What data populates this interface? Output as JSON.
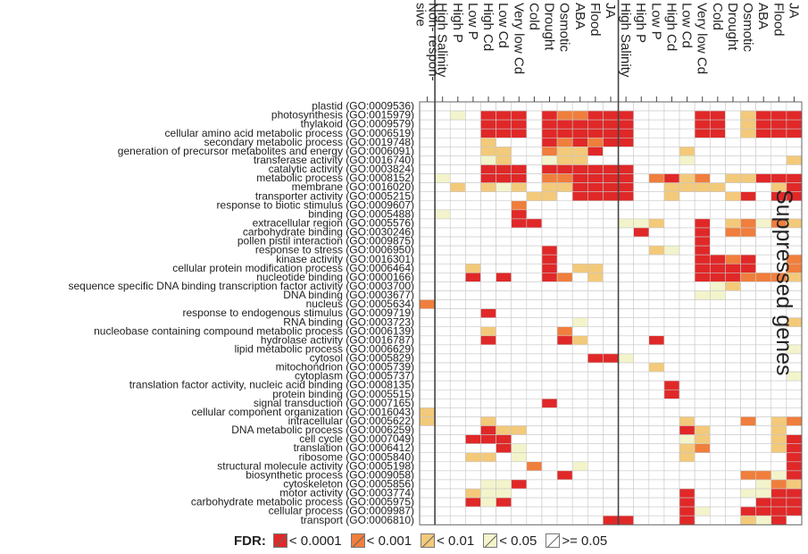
{
  "chart_data": {
    "type": "heatmap",
    "side_title": "Suppressed genes",
    "columns": [
      "Non- respon- sive",
      "High Salinity",
      "High P",
      "Low P",
      "High Cd",
      "Low Cd",
      "Very low Cd",
      "Cold",
      "Drought",
      "Osmotic",
      "ABA",
      "Flood",
      "JA",
      "High Salinity",
      "High P",
      "Low P",
      "High Cd",
      "Low Cd",
      "Very low Cd",
      "Cold",
      "Drought",
      "Osmotic",
      "ABA",
      "Flood",
      "JA"
    ],
    "rows": [
      "plastid (GO:0009536)",
      "photosynthesis (GO:0015979)",
      "thylakoid (GO:0009579)",
      "cellular amino acid metabolic process (GO:0006519)",
      "secondary metabolic process (GO:0019748)",
      "generation of precursor metabolites and energy (GO:0006091)",
      "transferase activity (GO:0016740)",
      "catalytic activity (GO:0003824)",
      "metabolic process (GO:0008152)",
      "membrane (GO:0016020)",
      "transporter activity (GO:0005215)",
      "response to biotic stimulus (GO:0009607)",
      "binding (GO:0005488)",
      "extracellular region (GO:0005576)",
      "carbohydrate binding (GO:0030246)",
      "pollen pistil interaction (GO:0009875)",
      "response to stress (GO:0006950)",
      "kinase activity (GO:0016301)",
      "cellular protein modification process (GO:0006464)",
      "nucleotide binding (GO:0000166)",
      "sequence specific DNA binding transcription factor activity (GO:0003700)",
      "DNA binding (GO:0003677)",
      "nucleus (GO:0005634)",
      "response to endogenous stimulus (GO:0009719)",
      "RNA binding (GO:0003723)",
      "nucleobase containing compound metabolic process (GO:0006139)",
      "hydrolase activity (GO:0016787)",
      "lipid metabolic process (GO:0006629)",
      "cytosol (GO:0005829)",
      "mitochondrion (GO:0005739)",
      "cytoplasm (GO:0005737)",
      "translation factor activity, nucleic acid binding (GO:0008135)",
      "protein binding (GO:0005515)",
      "signal transduction (GO:0007165)",
      "cellular component organization (GO:0016043)",
      "intracellular (GO:0005622)",
      "DNA metabolic process (GO:0006259)",
      "cell cycle (GO:0007049)",
      "translation (GO:0006412)",
      "ribosome (GO:0005840)",
      "structural molecule activity (GO:0005198)",
      "biosynthetic process (GO:0009058)",
      "cytoskeleton (GO:0005856)",
      "motor activity (GO:0003774)",
      "carbohydrate metabolic process (GO:0005975)",
      "cellular process (GO:0009987)",
      "transport (GO:0006810)"
    ],
    "legend_title": "FDR:",
    "levels": [
      {
        "label": "< 0.0001",
        "color": "#e02828"
      },
      {
        "label": "< 0.001",
        "color": "#f07e3c"
      },
      {
        "label": "< 0.01",
        "color": "#f3c97a"
      },
      {
        "label": "< 0.05",
        "color": "#f3f4cb"
      },
      {
        "label": ">= 0.05",
        "color": "#ffffff"
      }
    ],
    "cells": [
      "0000000000000000000000000",
      "0040111012211100001103111",
      "0000111011111100001103111",
      "0000111011111100001103111",
      "0000300012121100000000000",
      "0000330023310000030000000",
      "0000430043300000040000003",
      "0000111011111100000000000",
      "0400111022111102132033111",
      "0030343033111100333300031",
      "0000000330111100300031011",
      "0000002000000000000000000",
      "0400001000000000000000000",
      "0000001100000443001032423",
      "0000000000000010001022000",
      "0000000000000000001000000",
      "0000000010000003401000000",
      "0000000010000000001121002",
      "0003000010330000001111002",
      "0001010012030000001112223",
      "0000000000000000000430000",
      "0000000000000000004400000",
      "2000000000000000000000000",
      "0000100000000000000000000",
      "0000000000400000000000003",
      "0000300002000000000000000",
      "0000100001300001000000000",
      "0000000000000000000000004",
      "0000000000011400000000000",
      "0000000000000003000000000",
      "0000000000000000000000004",
      "0000000000000000100000000",
      "0000000000000000100000000",
      "0000000010000000000000000",
      "3000000000000000000000000",
      "3000300000000000030002032",
      "0000133000000000013000030",
      "0001110000000000043000031",
      "0000014000000000032000031",
      "0003304000000000030000001",
      "0000000200400000000000001",
      "0000000001000000000002241",
      "0000441000000000000000423",
      "0003440000000000010004411",
      "0001410000000000010000111",
      "0000000000000000014001111",
      "0000000000001100010003410"
    ]
  }
}
